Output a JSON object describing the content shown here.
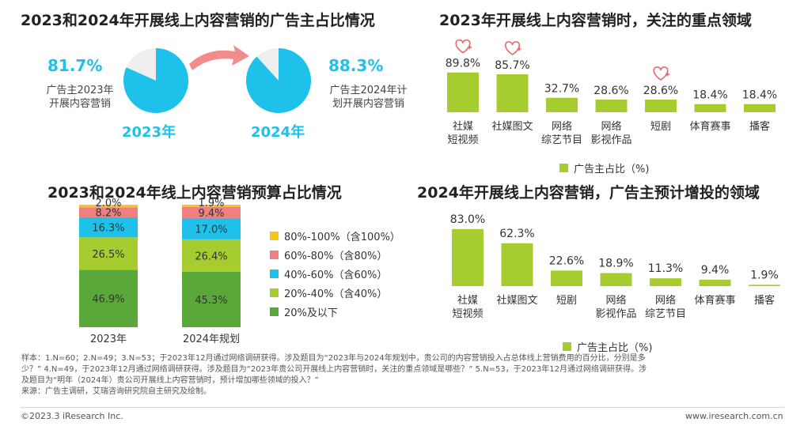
{
  "colors": {
    "lime": "#a7cc2f",
    "cyan": "#1dc1ea",
    "gray_pie": "#eeeeee",
    "arrow": "#f28b8b",
    "heart": "#e86a6a",
    "seg1": "#5ba83a",
    "seg2": "#a7cc2f",
    "seg3": "#1dc1ea",
    "seg4": "#f08080",
    "seg5": "#f5c518"
  },
  "panel_tl": {
    "title": "2023和2024年开展线上内容营销的广告主占比情况",
    "pie1_pct": "81.7%",
    "pie1_desc_line1": "广告主2023年",
    "pie1_desc_line2": "开展内容营销",
    "pie1_year": "2023年",
    "pie2_pct": "88.3%",
    "pie2_desc_line1": "广告主2024年计",
    "pie2_desc_line2": "划开展内容营销",
    "pie2_year": "2024年"
  },
  "panel_tr": {
    "title": "2023年开展线上内容营销时，关注的重点领域",
    "legend": "广告主占比（%)"
  },
  "panel_bl": {
    "title": "2023和2024年线上内容营销预算占比情况"
  },
  "panel_br": {
    "title": "2024年开展线上内容营销，广告主预计增投的领域",
    "legend": "广告主占比（%)"
  },
  "footer": {
    "note_line1": "样本：1.N=60；2.N=49；3.N=53；于2023年12月通过网络调研获得。涉及题目为“2023年与2024年规划中，贵公司的内容营销投入占总体线上营销费用的百分比，分别是多",
    "note_line2": "少？” 4.N=49，于2023年12月通过网络调研获得。涉及题目为“2023年贵公司开展线上内容营销时，关注的重点领域是哪些？” 5.N=53，于2023年12月通过网络调研获得。涉",
    "note_line3": "及题目为“明年（2024年）贵公司开展线上内容营销时，预计增加哪些领域的投入？”",
    "source": "来源：广告主调研，艾瑞咨询研究院自主研究及绘制。",
    "copyright": "©2023.3 iResearch Inc.",
    "website": "www.iresearch.com.cn"
  },
  "chart_data": [
    {
      "type": "pie",
      "title": "2023和2024年开展线上内容营销的广告主占比情况",
      "pies": [
        {
          "label": "2023年",
          "value": 81.7,
          "desc": "广告主2023年开展内容营销"
        },
        {
          "label": "2024年",
          "value": 88.3,
          "desc": "广告主2024年计划开展内容营销"
        }
      ]
    },
    {
      "type": "bar",
      "title": "2023年开展线上内容营销时，关注的重点领域",
      "categories": [
        [
          "社媒",
          "短视频"
        ],
        [
          "社媒图文"
        ],
        [
          "网络",
          "综艺节目"
        ],
        [
          "网络",
          "影视作品"
        ],
        [
          "短剧"
        ],
        [
          "体育赛事"
        ],
        [
          "播客"
        ]
      ],
      "values": [
        89.8,
        85.7,
        32.7,
        28.6,
        28.6,
        18.4,
        18.4
      ],
      "labels": [
        "89.8%",
        "85.7%",
        "32.7%",
        "28.6%",
        "28.6%",
        "18.4%",
        "18.4%"
      ],
      "highlighted": [
        true,
        true,
        false,
        false,
        true,
        false,
        false
      ],
      "legend": "广告主占比（%)"
    },
    {
      "type": "bar",
      "stacked": true,
      "title": "2023和2024年线上内容营销预算占比情况",
      "categories": [
        "2023年",
        "2024年规划"
      ],
      "series": [
        {
          "name": "20%及以下",
          "values": [
            46.9,
            45.3
          ],
          "labels": [
            "46.9%",
            "45.3%"
          ]
        },
        {
          "name": "20%-40%（含40%）",
          "values": [
            26.5,
            26.4
          ],
          "labels": [
            "26.5%",
            "26.4%"
          ]
        },
        {
          "name": "40%-60%（含60%）",
          "values": [
            16.3,
            17.0
          ],
          "labels": [
            "16.3%",
            "17.0%"
          ]
        },
        {
          "name": "60%-80%（含80%）",
          "values": [
            8.2,
            9.4
          ],
          "labels": [
            "8.2%",
            "9.4%"
          ]
        },
        {
          "name": "80%-100%（含100%）",
          "values": [
            2.0,
            1.9
          ],
          "labels": [
            "2.0%",
            "1.9%"
          ]
        }
      ]
    },
    {
      "type": "bar",
      "title": "2024年开展线上内容营销，广告主预计增投的领域",
      "categories": [
        [
          "社媒",
          "短视频"
        ],
        [
          "社媒图文"
        ],
        [
          "短剧"
        ],
        [
          "网络",
          "影视作品"
        ],
        [
          "网络",
          "综艺节目"
        ],
        [
          "体育赛事"
        ],
        [
          "播客"
        ]
      ],
      "values": [
        83.0,
        62.3,
        22.6,
        18.9,
        11.3,
        9.4,
        1.9
      ],
      "labels": [
        "83.0%",
        "62.3%",
        "22.6%",
        "18.9%",
        "11.3%",
        "9.4%",
        "1.9%"
      ],
      "legend": "广告主占比（%)"
    }
  ]
}
